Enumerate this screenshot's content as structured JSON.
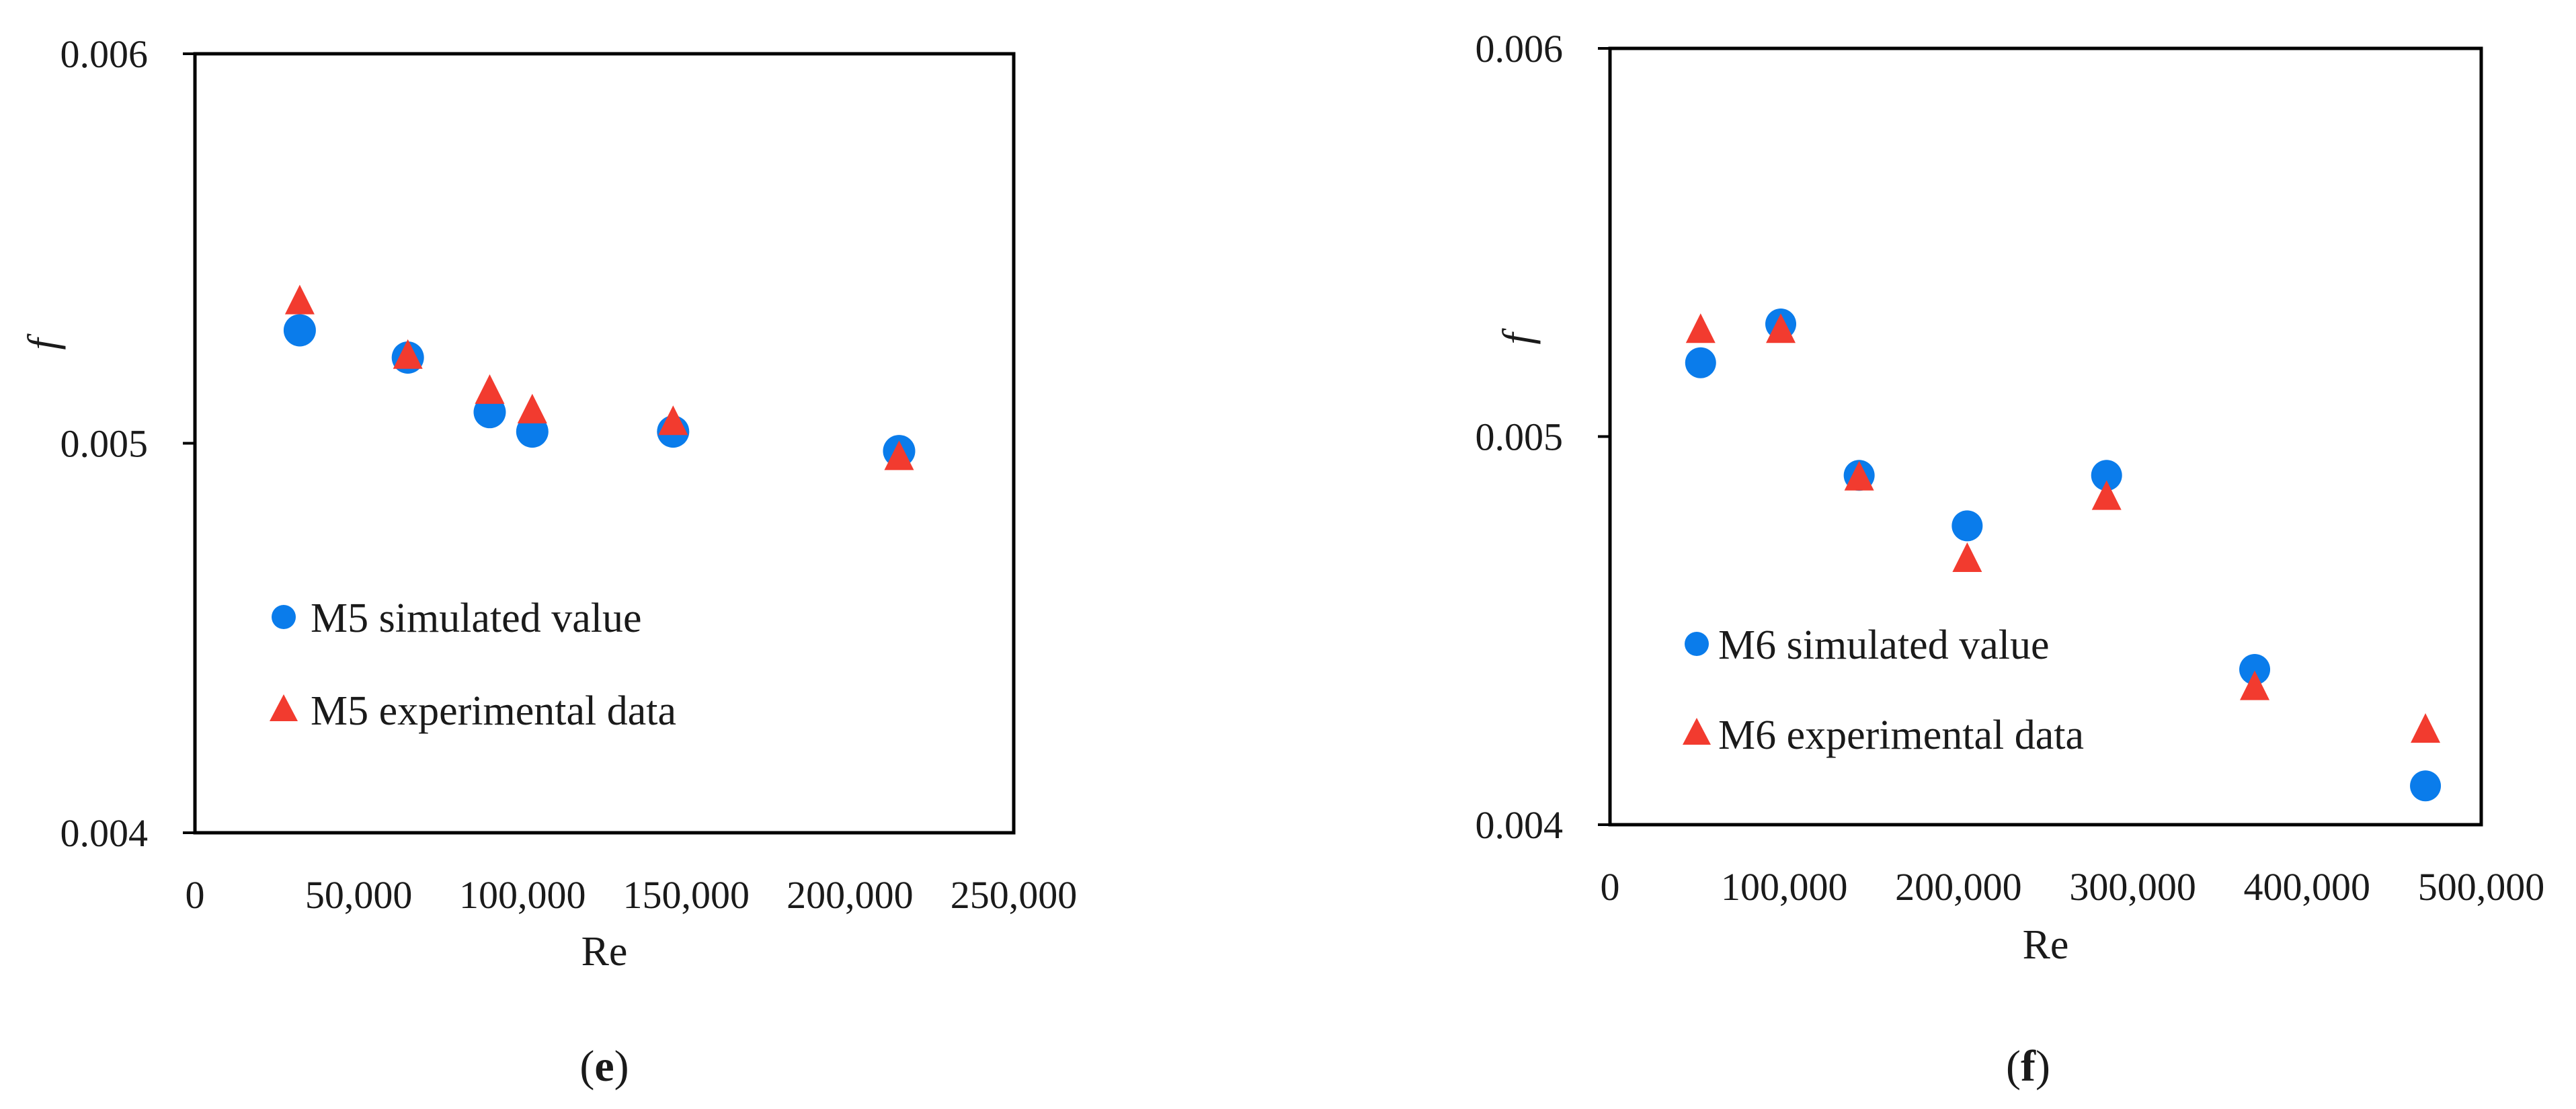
{
  "colors": {
    "simulated": "#0A7CEB",
    "experimental": "#F23B2F"
  },
  "chart_data": [
    {
      "type": "scatter",
      "panel_label": "e",
      "xlabel": "Re",
      "ylabel": "f",
      "xlim": [
        0,
        250000
      ],
      "ylim": [
        0.004,
        0.006
      ],
      "xticks": [
        0,
        50000,
        100000,
        150000,
        200000,
        250000
      ],
      "xtick_labels": [
        "0",
        "50,000",
        "100,000",
        "150,000",
        "200,000",
        "250,000"
      ],
      "yticks": [
        0.004,
        0.005,
        0.006
      ],
      "ytick_labels": [
        "0.004",
        "0.005",
        "0.006"
      ],
      "grid": false,
      "legend_position": "center-left",
      "series": [
        {
          "name": "M5 simulated value",
          "marker": "circle",
          "points": [
            {
              "x": 32000,
              "y": 0.00529
            },
            {
              "x": 65000,
              "y": 0.00522
            },
            {
              "x": 90000,
              "y": 0.00508
            },
            {
              "x": 103000,
              "y": 0.00503
            },
            {
              "x": 146000,
              "y": 0.00503
            },
            {
              "x": 215000,
              "y": 0.00498
            }
          ]
        },
        {
          "name": "M5 experimental data",
          "marker": "triangle",
          "points": [
            {
              "x": 32000,
              "y": 0.00536
            },
            {
              "x": 65000,
              "y": 0.00522
            },
            {
              "x": 90000,
              "y": 0.00513
            },
            {
              "x": 103000,
              "y": 0.00508
            },
            {
              "x": 146000,
              "y": 0.00505
            },
            {
              "x": 215000,
              "y": 0.00496
            }
          ]
        }
      ]
    },
    {
      "type": "scatter",
      "panel_label": "f",
      "xlabel": "Re",
      "ylabel": "f",
      "xlim": [
        0,
        500000
      ],
      "ylim": [
        0.004,
        0.006
      ],
      "xticks": [
        0,
        100000,
        200000,
        300000,
        400000,
        500000
      ],
      "xtick_labels": [
        "0",
        "100,000",
        "200,000",
        "300,000",
        "400,000",
        "500,000"
      ],
      "yticks": [
        0.004,
        0.005,
        0.006
      ],
      "ytick_labels": [
        "0.004",
        "0.005",
        "0.006"
      ],
      "grid": false,
      "legend_position": "bottom-left",
      "series": [
        {
          "name": "M6 simulated value",
          "marker": "circle",
          "points": [
            {
              "x": 52000,
              "y": 0.00519
            },
            {
              "x": 98000,
              "y": 0.00529
            },
            {
              "x": 143000,
              "y": 0.0049
            },
            {
              "x": 205000,
              "y": 0.00477
            },
            {
              "x": 285000,
              "y": 0.0049
            },
            {
              "x": 370000,
              "y": 0.0044
            },
            {
              "x": 468000,
              "y": 0.0041
            }
          ]
        },
        {
          "name": "M6 experimental data",
          "marker": "triangle",
          "points": [
            {
              "x": 52000,
              "y": 0.00527
            },
            {
              "x": 98000,
              "y": 0.00527
            },
            {
              "x": 143000,
              "y": 0.00489
            },
            {
              "x": 205000,
              "y": 0.00468
            },
            {
              "x": 285000,
              "y": 0.00484
            },
            {
              "x": 370000,
              "y": 0.00435
            },
            {
              "x": 468000,
              "y": 0.00424
            }
          ]
        }
      ]
    }
  ]
}
